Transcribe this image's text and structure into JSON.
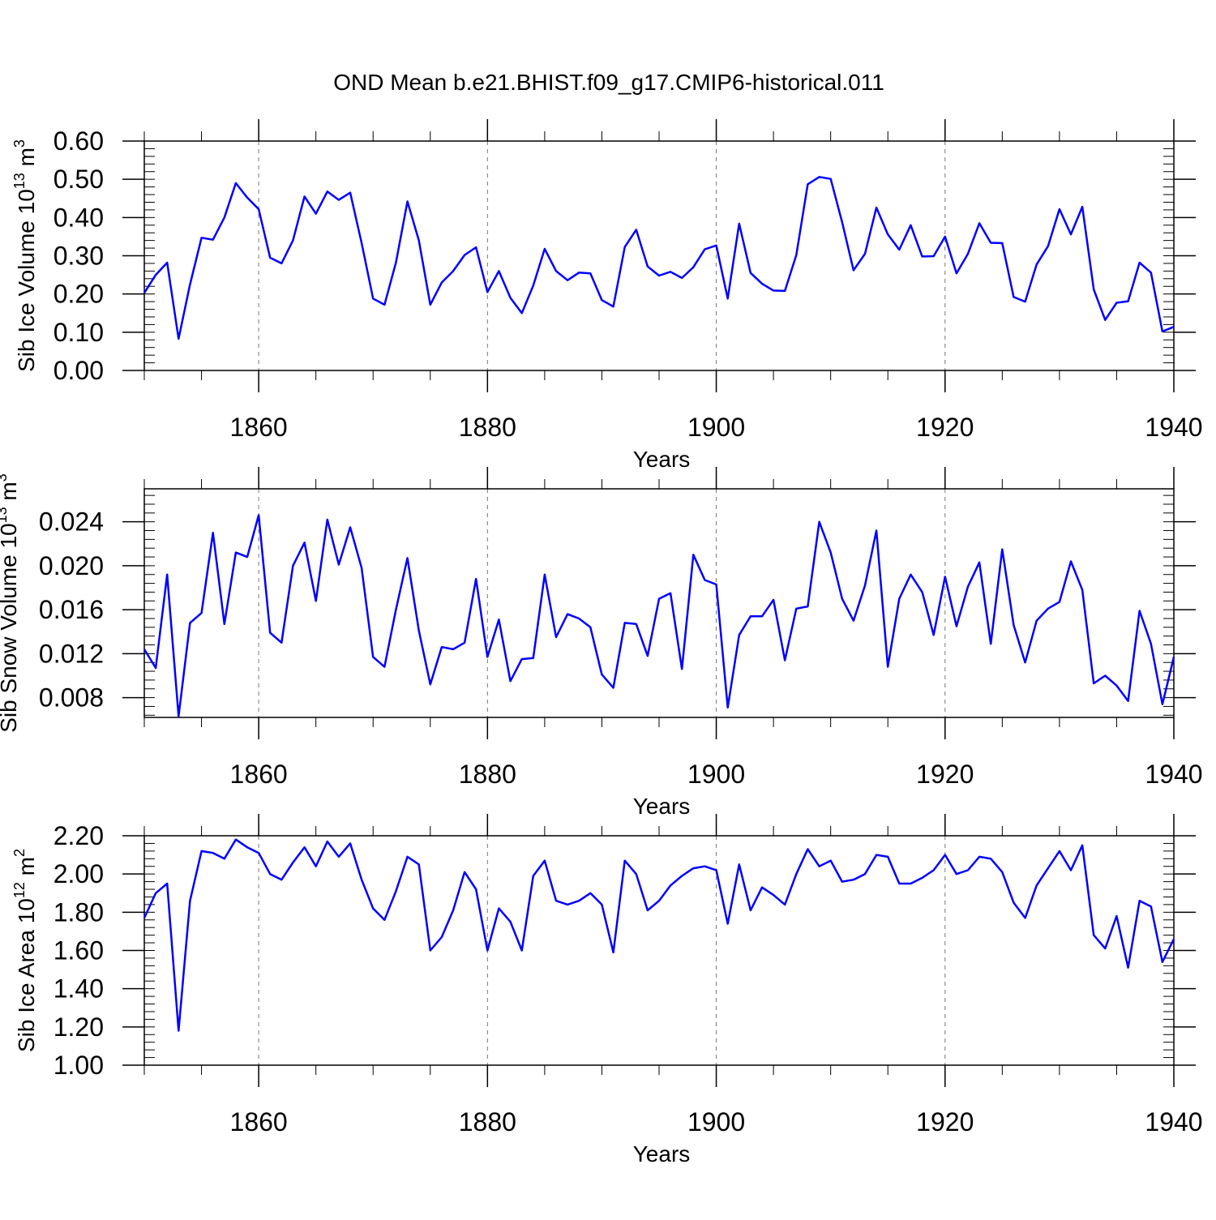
{
  "title": "OND Mean b.e21.BHIST.f09_g17.CMIP6-historical.011",
  "chart_data": [
    {
      "type": "line",
      "ylabel": "Sib Ice Volume 10",
      "ylabel_sup": "13",
      "ylabel_unit": " m",
      "ylabel_unit_sup": "3",
      "xlabel": "Years",
      "xlim": [
        1850,
        1940
      ],
      "ylim": [
        0.0,
        0.6
      ],
      "yticks": [
        "0.00",
        "0.10",
        "0.20",
        "0.30",
        "0.40",
        "0.50",
        "0.60"
      ],
      "ytick_values": [
        0.0,
        0.1,
        0.2,
        0.3,
        0.4,
        0.5,
        0.6
      ],
      "yminor_step": 0.02,
      "xticks": [
        "1860",
        "1880",
        "1900",
        "1920",
        "1940"
      ],
      "xtick_values": [
        1860,
        1880,
        1900,
        1920,
        1940
      ],
      "grid": "vertical dashed at major x ticks",
      "line_color": "#0000ff",
      "x_start": 1850,
      "values": [
        0.203,
        0.25,
        0.282,
        0.083,
        0.225,
        0.347,
        0.342,
        0.4,
        0.49,
        0.452,
        0.422,
        0.295,
        0.28,
        0.34,
        0.455,
        0.41,
        0.468,
        0.446,
        0.465,
        0.333,
        0.188,
        0.172,
        0.282,
        0.442,
        0.34,
        0.172,
        0.23,
        0.26,
        0.302,
        0.322,
        0.205,
        0.26,
        0.19,
        0.15,
        0.222,
        0.318,
        0.26,
        0.236,
        0.256,
        0.254,
        0.184,
        0.167,
        0.323,
        0.368,
        0.272,
        0.248,
        0.258,
        0.242,
        0.27,
        0.317,
        0.327,
        0.188,
        0.384,
        0.255,
        0.227,
        0.209,
        0.208,
        0.302,
        0.487,
        0.506,
        0.501,
        0.388,
        0.262,
        0.305,
        0.426,
        0.356,
        0.316,
        0.38,
        0.298,
        0.299,
        0.35,
        0.254,
        0.305,
        0.385,
        0.334,
        0.333,
        0.192,
        0.18,
        0.277,
        0.325,
        0.422,
        0.356,
        0.428,
        0.212,
        0.132,
        0.177,
        0.181,
        0.282,
        0.256,
        0.102,
        0.114
      ]
    },
    {
      "type": "line",
      "ylabel": "Sib Snow Volume 10",
      "ylabel_sup": "13",
      "ylabel_unit": " m",
      "ylabel_unit_sup": "3",
      "xlabel": "Years",
      "xlim": [
        1850,
        1940
      ],
      "ylim": [
        0.0062,
        0.027
      ],
      "yticks": [
        "0.008",
        "0.012",
        "0.016",
        "0.020",
        "0.024"
      ],
      "ytick_values": [
        0.008,
        0.012,
        0.016,
        0.02,
        0.024
      ],
      "yminor_step": 0.0008,
      "xticks": [
        "1860",
        "1880",
        "1900",
        "1920",
        "1940"
      ],
      "xtick_values": [
        1860,
        1880,
        1900,
        1920,
        1940
      ],
      "grid": "vertical dashed at major x ticks",
      "line_color": "#0000ff",
      "x_start": 1850,
      "values": [
        0.0124,
        0.0107,
        0.0192,
        0.0063,
        0.0148,
        0.0157,
        0.023,
        0.0147,
        0.0212,
        0.0208,
        0.0246,
        0.0139,
        0.013,
        0.02,
        0.0221,
        0.0168,
        0.0242,
        0.0201,
        0.0235,
        0.0198,
        0.0117,
        0.0108,
        0.016,
        0.0207,
        0.0141,
        0.0092,
        0.0126,
        0.0124,
        0.013,
        0.0188,
        0.0117,
        0.0151,
        0.0095,
        0.0115,
        0.0116,
        0.0192,
        0.0135,
        0.0156,
        0.0152,
        0.0144,
        0.0101,
        0.0089,
        0.0148,
        0.0147,
        0.0118,
        0.017,
        0.0175,
        0.0106,
        0.021,
        0.0187,
        0.0183,
        0.0071,
        0.0137,
        0.0154,
        0.0154,
        0.0169,
        0.0114,
        0.0161,
        0.0163,
        0.024,
        0.0212,
        0.017,
        0.015,
        0.0182,
        0.0232,
        0.0108,
        0.017,
        0.0192,
        0.0176,
        0.0137,
        0.019,
        0.0145,
        0.0181,
        0.0203,
        0.0129,
        0.0215,
        0.0146,
        0.0112,
        0.015,
        0.0161,
        0.0167,
        0.0204,
        0.0178,
        0.0093,
        0.01,
        0.0091,
        0.0077,
        0.0159,
        0.0129,
        0.0074,
        0.0117
      ]
    },
    {
      "type": "line",
      "ylabel": "Sib Ice Area 10",
      "ylabel_sup": "12",
      "ylabel_unit": " m",
      "ylabel_unit_sup": "2",
      "xlabel": "Years",
      "xlim": [
        1850,
        1940
      ],
      "ylim": [
        1.0,
        2.2
      ],
      "yticks": [
        "1.00",
        "1.20",
        "1.40",
        "1.60",
        "1.80",
        "2.00",
        "2.20"
      ],
      "ytick_values": [
        1.0,
        1.2,
        1.4,
        1.6,
        1.8,
        2.0,
        2.2
      ],
      "yminor_step": 0.04,
      "xticks": [
        "1860",
        "1880",
        "1900",
        "1920",
        "1940"
      ],
      "xtick_values": [
        1860,
        1880,
        1900,
        1920,
        1940
      ],
      "grid": "vertical dashed at major x ticks",
      "line_color": "#0000ff",
      "x_start": 1850,
      "values": [
        1.77,
        1.9,
        1.95,
        1.18,
        1.86,
        2.12,
        2.11,
        2.08,
        2.18,
        2.14,
        2.11,
        2.0,
        1.97,
        2.06,
        2.14,
        2.04,
        2.17,
        2.09,
        2.16,
        1.97,
        1.82,
        1.76,
        1.91,
        2.09,
        2.05,
        1.6,
        1.67,
        1.81,
        2.01,
        1.92,
        1.6,
        1.82,
        1.75,
        1.6,
        1.99,
        2.07,
        1.86,
        1.84,
        1.86,
        1.9,
        1.84,
        1.59,
        2.07,
        2.0,
        1.81,
        1.86,
        1.94,
        1.99,
        2.03,
        2.04,
        2.02,
        1.74,
        2.05,
        1.81,
        1.93,
        1.89,
        1.84,
        2.0,
        2.13,
        2.04,
        2.07,
        1.96,
        1.97,
        2.0,
        2.1,
        2.09,
        1.95,
        1.95,
        1.98,
        2.02,
        2.1,
        2.0,
        2.02,
        2.09,
        2.08,
        2.01,
        1.85,
        1.77,
        1.94,
        2.03,
        2.12,
        2.02,
        2.15,
        1.68,
        1.61,
        1.78,
        1.51,
        1.86,
        1.83,
        1.54,
        1.66
      ]
    }
  ]
}
